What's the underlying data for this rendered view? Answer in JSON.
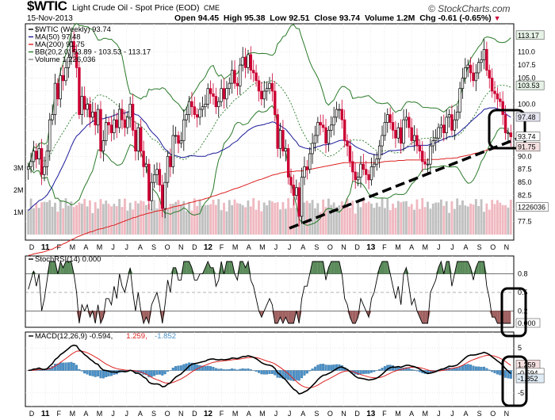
{
  "header": {
    "symbol": "$WTIC",
    "name": "Light Crude Oil - Spot Price (EOD)",
    "exchange": "CME",
    "date": "15-Nov-2013",
    "open_label": "Open",
    "open": "94.45",
    "high_label": "High",
    "high": "95.38",
    "low_label": "Low",
    "low": "92.51",
    "close_label": "Close",
    "close": "93.74",
    "volume_label": "Volume",
    "volume": "1.2M",
    "chg_label": "Chg",
    "chg": "-0.61 (-0.65%)",
    "credit": "© StockCharts.com"
  },
  "colors": {
    "up": "#000000",
    "down": "#cc0033",
    "ma50": "#1a1a99",
    "ma200": "#dd2222",
    "bb": "#2a7a2a",
    "volume": "#c0c0c0",
    "volume_down": "#f0b8c0",
    "stoch_up_fill": "#5a8a5a",
    "stoch_down_fill": "#a06060",
    "macd": "#000000",
    "signal": "#dd2222",
    "hist": "#4a90c8",
    "annotation": "#000000"
  },
  "chart_data": [
    {
      "type": "candlestick",
      "panel": "price",
      "legend": [
        {
          "label": "$WTIC (Weekly) 93.74",
          "color": "#000000"
        },
        {
          "label": "MA(50) 97.48",
          "color": "#1a1a99"
        },
        {
          "label": "MA(200) 91.75",
          "color": "#dd2222"
        },
        {
          "label": "BB(20,2.0) 93.89 - 103.53 - 113.17",
          "color": "#2a7a2a"
        },
        {
          "label": "Volume 1,226,036",
          "color": "#888888"
        }
      ],
      "ylim": [
        75,
        114.5
      ],
      "y_ticks": [
        77.5,
        80.0,
        82.5,
        85.0,
        87.5,
        90.0,
        92.5,
        95.0,
        97.5,
        100.0,
        102.5,
        105.0,
        107.5,
        110.0
      ],
      "y_tick_labels": [
        "77.5",
        "80.0",
        "82.5",
        "85.0",
        "87.5",
        "90.0",
        "",
        "",
        "97.48",
        "100.0",
        "",
        "105.0",
        "107.5",
        "110.0"
      ],
      "value_badges": [
        {
          "label": "113.17",
          "value": 113.17
        },
        {
          "label": "103.53",
          "value": 103.53
        },
        {
          "label": "97.48",
          "value": 97.48
        },
        {
          "label": "93.74",
          "value": 93.74
        },
        {
          "label": "91.75",
          "value": 91.75
        }
      ],
      "volume_axis": {
        "labels": [
          "3M",
          "2M",
          "1M"
        ],
        "values": [
          3.0,
          2.0,
          1.0
        ],
        "badge": "1226036",
        "badge_value": 1.226
      },
      "x_tick_labels": [
        "D",
        "11",
        "F",
        "M",
        "A",
        "M",
        "J",
        "J",
        "A",
        "S",
        "O",
        "N",
        "D",
        "12",
        "F",
        "M",
        "A",
        "M",
        "J",
        "J",
        "A",
        "S",
        "O",
        "N",
        "D",
        "13",
        "F",
        "M",
        "A",
        "M",
        "J",
        "J",
        "A",
        "S",
        "O",
        "N"
      ],
      "close": [
        88.0,
        89.0,
        91.0,
        89.5,
        91.5,
        86.5,
        88.0,
        91.0,
        97.0,
        98.0,
        104.0,
        101.0,
        105.5,
        104.5,
        107.0,
        109.0,
        112.0,
        110.0,
        107.0,
        98.0,
        101.5,
        99.0,
        100.0,
        97.5,
        98.5,
        96.0,
        99.0,
        91.0,
        93.0,
        96.5,
        96.0,
        94.5,
        97.0,
        95.5,
        99.0,
        97.0,
        95.5,
        97.5,
        100.0,
        95.0,
        91.0,
        95.5,
        91.0,
        88.0,
        88.5,
        81.5,
        85.0,
        86.5,
        87.5,
        84.5,
        80.0,
        85.0,
        90.0,
        88.0,
        94.0,
        94.0,
        92.5,
        93.0,
        97.0,
        98.0,
        100.5,
        99.5,
        98.0,
        97.5,
        99.0,
        99.5,
        100.0,
        103.0,
        102.0,
        101.5,
        99.5,
        100.5,
        103.0,
        101.0,
        103.0,
        104.0,
        106.5,
        104.0,
        103.5,
        107.5,
        109.0,
        107.0,
        109.5,
        106.5,
        106.0,
        104.5,
        102.5,
        101.0,
        102.5,
        103.0,
        104.0,
        102.5,
        98.0,
        91.5,
        95.0,
        91.0,
        91.5,
        86.0,
        84.5,
        82.5,
        84.0,
        78.5,
        86.0,
        88.0,
        87.5,
        90.5,
        92.5,
        94.0,
        96.5,
        96.0,
        95.5,
        92.5,
        95.0,
        96.0,
        97.5,
        99.0,
        99.0,
        97.0,
        93.0,
        92.0,
        89.0,
        87.0,
        85.5,
        86.0,
        88.5,
        87.5,
        86.5,
        85.5,
        88.0,
        88.5,
        89.5,
        92.0,
        94.0,
        96.5,
        98.0,
        96.5,
        95.0,
        93.5,
        95.5,
        92.5,
        97.0,
        97.5,
        95.5,
        93.0,
        94.0,
        92.0,
        91.0,
        89.0,
        88.5,
        88.5,
        92.0,
        93.0,
        93.5,
        95.5,
        96.0,
        94.5,
        97.5,
        98.0,
        95.0,
        97.0,
        98.5,
        103.0,
        105.0,
        107.0,
        107.5,
        106.0,
        104.5,
        106.0,
        108.0,
        108.5,
        110.5,
        106.5,
        105.0,
        102.5,
        102.0,
        101.0,
        100.5,
        98.0,
        94.5,
        94.5,
        93.74
      ],
      "ma50": [
        79.6,
        80.1,
        80.6,
        81.0,
        81.5,
        81.7,
        82.1,
        82.6,
        83.4,
        84.2,
        85.3,
        86.2,
        87.3,
        88.3,
        89.4,
        90.6,
        91.9,
        93.0,
        93.9,
        94.3,
        94.9,
        95.4,
        96.0,
        96.3,
        96.7,
        96.9,
        97.3,
        97.2,
        97.2,
        97.4,
        97.5,
        97.6,
        97.9,
        98.0,
        98.3,
        98.3,
        98.3,
        98.5,
        98.6,
        98.4,
        98.0,
        97.9,
        97.4,
        96.8,
        96.3,
        95.4,
        94.7,
        94.2,
        93.7,
        93.0,
        92.1,
        91.4,
        91.0,
        90.4,
        90.3,
        90.1,
        90.0,
        89.8,
        89.8,
        89.9,
        90.1,
        90.1,
        90.1,
        90.0,
        90.0,
        90.0,
        90.0,
        90.3,
        90.4,
        90.6,
        90.6,
        90.8,
        91.1,
        91.3,
        91.6,
        91.9,
        92.4,
        92.7,
        93.0,
        93.6,
        94.1,
        94.5,
        95.0,
        95.3,
        95.6,
        95.8,
        95.9,
        96.0,
        96.1,
        96.3,
        96.4,
        96.6,
        96.5,
        96.0,
        95.9,
        95.5,
        95.2,
        94.6,
        94.0,
        93.3,
        92.8,
        92.0,
        91.8,
        91.6,
        91.5,
        91.4,
        91.5,
        91.7,
        91.9,
        92.0,
        92.2,
        92.2,
        92.3,
        92.4,
        92.6,
        92.8,
        93.0,
        93.1,
        93.0,
        92.9,
        92.7,
        92.3,
        91.9,
        91.6,
        91.4,
        91.2,
        90.9,
        90.6,
        90.5,
        90.3,
        90.3,
        90.3,
        90.4,
        90.6,
        90.9,
        91.1,
        91.1,
        91.1,
        91.2,
        91.2,
        91.4,
        91.7,
        91.9,
        91.9,
        92.0,
        92.1,
        92.1,
        92.1,
        92.1,
        92.1,
        92.3,
        92.5,
        92.6,
        92.9,
        93.1,
        93.3,
        93.5,
        93.8,
        93.8,
        94.0,
        94.3,
        94.7,
        95.2,
        95.6,
        96.1,
        96.6,
        97.1,
        97.5,
        98.0,
        98.4,
        99.0,
        99.1,
        99.3,
        99.3,
        99.3,
        99.1,
        99.0,
        98.7,
        98.2,
        97.8,
        97.48
      ],
      "ma200": [
        71.0,
        71.1,
        71.3,
        71.4,
        71.5,
        71.6,
        71.7,
        71.9,
        72.1,
        72.2,
        72.5,
        72.7,
        72.9,
        73.2,
        73.4,
        73.7,
        74.0,
        74.2,
        74.5,
        74.7,
        74.9,
        75.1,
        75.3,
        75.5,
        75.6,
        75.8,
        76.0,
        76.1,
        76.2,
        76.4,
        76.5,
        76.7,
        76.8,
        77.0,
        77.2,
        77.4,
        77.6,
        77.8,
        78.0,
        78.2,
        78.3,
        78.5,
        78.7,
        78.8,
        79.0,
        79.1,
        79.2,
        79.4,
        79.5,
        79.6,
        79.7,
        79.8,
        80.0,
        80.1,
        80.3,
        80.4,
        80.5,
        80.6,
        80.8,
        80.9,
        81.1,
        81.2,
        81.3,
        81.5,
        81.6,
        81.7,
        81.9,
        82.0,
        82.2,
        82.4,
        82.5,
        82.7,
        82.9,
        83.0,
        83.2,
        83.4,
        83.6,
        83.8,
        83.9,
        84.1,
        84.3,
        84.5,
        84.7,
        84.9,
        85.1,
        85.3,
        85.5,
        85.6,
        85.8,
        86.0,
        86.2,
        86.4,
        86.5,
        86.6,
        86.8,
        86.9,
        87.0,
        87.0,
        87.1,
        87.1,
        87.2,
        87.2,
        87.2,
        87.3,
        87.4,
        87.5,
        87.6,
        87.7,
        87.8,
        87.9,
        88.0,
        88.1,
        88.2,
        88.3,
        88.4,
        88.5,
        88.6,
        88.7,
        88.8,
        88.8,
        88.8,
        88.8,
        88.8,
        88.8,
        88.8,
        88.8,
        88.8,
        88.8,
        88.8,
        88.8,
        88.8,
        88.8,
        88.9,
        89.0,
        89.0,
        89.1,
        89.1,
        89.1,
        89.2,
        89.2,
        89.2,
        89.3,
        89.3,
        89.3,
        89.3,
        89.3,
        89.3,
        89.3,
        89.3,
        89.3,
        89.4,
        89.4,
        89.4,
        89.4,
        89.5,
        89.5,
        89.6,
        89.6,
        89.6,
        89.7,
        89.7,
        89.9,
        90.0,
        90.1,
        90.2,
        90.3,
        90.5,
        90.6,
        90.7,
        90.9,
        91.0,
        91.2,
        91.3,
        91.4,
        91.4,
        91.5,
        91.5,
        91.6,
        91.6,
        91.7,
        91.7,
        91.75
      ]
    },
    {
      "type": "line",
      "panel": "stochrsi",
      "legend": "StochRSI(14) 0.000",
      "ylim": [
        0,
        1
      ],
      "y_tick_labels": [
        "0.8",
        "0.5",
        "0.2"
      ],
      "y_ticks": [
        0.8,
        0.5,
        0.2
      ],
      "value_badge": {
        "label": "0.000",
        "value": 0.0
      },
      "values": [
        0.55,
        0.7,
        0.85,
        0.6,
        0.8,
        0.2,
        0.4,
        0.7,
        1.0,
        1.0,
        1.0,
        0.8,
        1.0,
        0.9,
        1.0,
        1.0,
        1.0,
        0.8,
        0.5,
        0.0,
        0.3,
        0.2,
        0.3,
        0.1,
        0.2,
        0.0,
        0.3,
        0.0,
        0.1,
        0.4,
        0.4,
        0.3,
        0.6,
        0.4,
        0.8,
        0.6,
        0.5,
        0.7,
        0.9,
        0.5,
        0.2,
        0.5,
        0.2,
        0.0,
        0.1,
        0.0,
        0.3,
        0.4,
        0.5,
        0.3,
        0.0,
        0.3,
        0.7,
        0.5,
        0.9,
        0.9,
        0.7,
        0.7,
        1.0,
        1.0,
        1.0,
        0.9,
        0.7,
        0.7,
        0.8,
        0.8,
        0.9,
        1.0,
        0.9,
        0.9,
        0.6,
        0.7,
        1.0,
        0.8,
        1.0,
        1.0,
        1.0,
        0.8,
        0.7,
        1.0,
        1.0,
        0.9,
        1.0,
        0.7,
        0.6,
        0.4,
        0.2,
        0.1,
        0.2,
        0.3,
        0.4,
        0.3,
        0.0,
        0.0,
        0.1,
        0.0,
        0.1,
        0.0,
        0.0,
        0.0,
        0.2,
        0.0,
        0.4,
        0.6,
        0.6,
        0.8,
        1.0,
        1.0,
        1.0,
        1.0,
        1.0,
        0.7,
        0.9,
        1.0,
        1.0,
        1.0,
        1.0,
        0.8,
        0.4,
        0.3,
        0.1,
        0.0,
        0.0,
        0.1,
        0.4,
        0.3,
        0.2,
        0.1,
        0.4,
        0.5,
        0.7,
        0.9,
        1.0,
        1.0,
        1.0,
        0.8,
        0.6,
        0.4,
        0.6,
        0.3,
        0.8,
        0.9,
        0.6,
        0.3,
        0.4,
        0.2,
        0.1,
        0.0,
        0.0,
        0.0,
        0.5,
        0.6,
        0.7,
        0.9,
        1.0,
        0.8,
        1.0,
        1.0,
        0.6,
        0.8,
        1.0,
        1.0,
        1.0,
        1.0,
        1.0,
        0.9,
        0.7,
        0.9,
        1.0,
        1.0,
        1.0,
        0.6,
        0.4,
        0.1,
        0.1,
        0.0,
        0.0,
        0.0,
        0.0,
        0.0,
        0.0
      ]
    },
    {
      "type": "line",
      "panel": "macd",
      "legend": [
        {
          "label": "MACD(12,26,9)",
          "value": "-0.594",
          "color": "#000000"
        },
        {
          "label": "",
          "value": "1.259",
          "color": "#dd2222"
        },
        {
          "label": "",
          "value": "-1.852",
          "color": "#4a90c8"
        }
      ],
      "ylim": [
        -7.5,
        7.5
      ],
      "y_tick_labels": [
        "5",
        "0",
        "-5"
      ],
      "y_ticks": [
        5,
        0,
        -5
      ],
      "value_badges": [
        {
          "label": "1.259",
          "value": 1.259
        },
        {
          "label": "-0.594",
          "value": -0.594
        },
        {
          "label": "-1.852",
          "value": -1.852
        }
      ],
      "macd": [],
      "signal": []
    }
  ]
}
